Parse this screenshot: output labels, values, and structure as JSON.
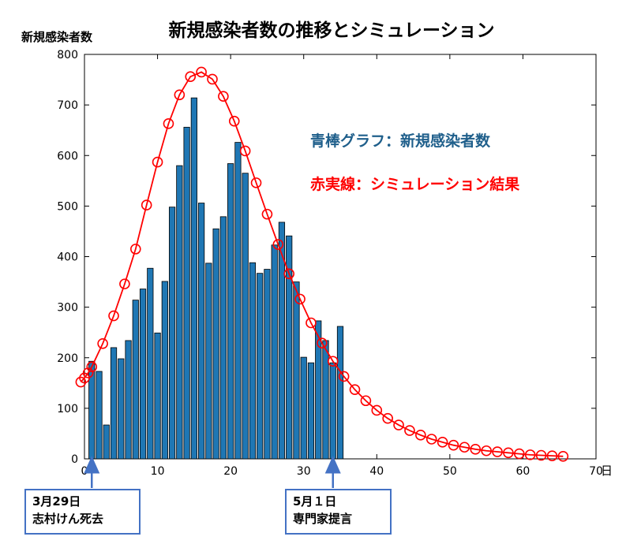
{
  "chart_data": {
    "type": "bar",
    "title": "新規感染者数の推移とシミュレーション",
    "ylabel": "新規感染者数",
    "xlabel_unit": "日",
    "xlim": [
      0,
      70
    ],
    "ylim": [
      0,
      800
    ],
    "x_ticks": [
      0,
      10,
      20,
      30,
      40,
      50,
      60,
      70
    ],
    "y_ticks": [
      0,
      100,
      200,
      300,
      400,
      500,
      600,
      700,
      800
    ],
    "grid": false,
    "series": [
      {
        "name": "青棒グラフ：新規感染者数",
        "kind": "bar",
        "color": "#1f77b4",
        "x": [
          1,
          2,
          3,
          4,
          5,
          6,
          7,
          8,
          9,
          10,
          11,
          12,
          13,
          14,
          15,
          16,
          17,
          18,
          19,
          20,
          21,
          22,
          23,
          24,
          25,
          26,
          27,
          28,
          29,
          30,
          31,
          32,
          33,
          34,
          35
        ],
        "values": [
          193,
          173,
          67,
          220,
          198,
          234,
          314,
          336,
          377,
          249,
          351,
          498,
          580,
          656,
          714,
          506,
          387,
          455,
          479,
          584,
          626,
          565,
          388,
          367,
          375,
          423,
          468,
          441,
          350,
          201,
          190,
          273,
          234,
          190,
          262
        ]
      },
      {
        "name": "赤実線：シミュレーション結果",
        "kind": "line-markers",
        "color": "#ff0000",
        "x": [
          -0.5,
          0,
          0.5,
          1,
          2.5,
          4,
          5.5,
          7,
          8.5,
          10,
          11.5,
          13,
          14.5,
          16,
          17.5,
          19,
          20.5,
          22,
          23.5,
          25,
          26.5,
          28,
          29.5,
          31,
          32.5,
          34,
          35.5,
          37,
          38.5,
          40,
          41.5,
          43,
          44.5,
          46,
          47.5,
          49,
          50.5,
          52,
          53.5,
          55,
          56.5,
          58,
          59.5,
          61,
          62.5,
          64,
          65.5
        ],
        "values": [
          152,
          160,
          170,
          182,
          228,
          283,
          346,
          415,
          502,
          587,
          663,
          720,
          756,
          765,
          751,
          717,
          668,
          609,
          546,
          484,
          424,
          366,
          316,
          269,
          229,
          193,
          163,
          137,
          115,
          96,
          80,
          67,
          56,
          47,
          39,
          33,
          27,
          23,
          19,
          16,
          14,
          12,
          10,
          8,
          7,
          6,
          5
        ]
      }
    ],
    "legend": [
      {
        "text": "青棒グラフ：新規感染者数",
        "color": "#1f5f8b"
      },
      {
        "text": "赤実線：シミュレーション結果",
        "color": "#ff0000"
      }
    ],
    "annotations": [
      {
        "line1": "3月29日",
        "line2": "志村けん死去",
        "x": 1
      },
      {
        "line1": "5月１日",
        "line2": "専門家提言",
        "x": 34
      }
    ]
  }
}
